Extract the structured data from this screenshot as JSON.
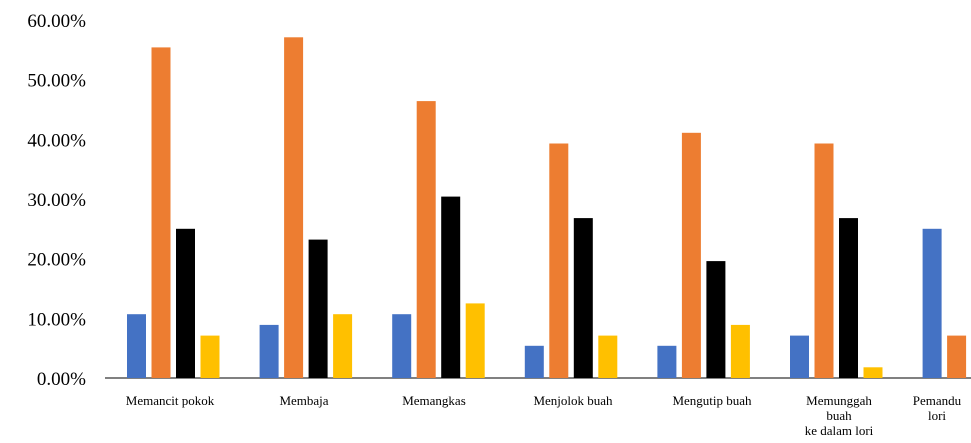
{
  "chart_data": {
    "type": "bar",
    "title": "",
    "xlabel": "",
    "ylabel": "",
    "ylim": [
      0,
      60
    ],
    "y_ticks": [
      "0.00%",
      "10.00%",
      "20.00%",
      "30.00%",
      "40.00%",
      "50.00%",
      "60.00%"
    ],
    "y_tick_values": [
      0,
      10,
      20,
      30,
      40,
      50,
      60
    ],
    "grid": false,
    "legend": "none",
    "categories": [
      [
        "Memancit pokok"
      ],
      [
        "Membaja"
      ],
      [
        "Memangkas"
      ],
      [
        "Menjolok buah"
      ],
      [
        "Mengutip buah"
      ],
      [
        "Memunggah",
        "buah",
        "ke dalam lori"
      ],
      [
        "Pemandu",
        "lori"
      ]
    ],
    "series": [
      {
        "color": "#4472C4",
        "values": [
          10.7,
          8.9,
          10.7,
          5.4,
          5.4,
          7.1,
          25.0
        ]
      },
      {
        "color": "#ED7D31",
        "values": [
          55.4,
          57.1,
          46.4,
          39.3,
          41.1,
          39.3,
          7.1
        ]
      },
      {
        "color": "#000000",
        "values": [
          25.0,
          23.2,
          30.4,
          26.8,
          19.6,
          26.8,
          0
        ]
      },
      {
        "color": "#FFC000",
        "values": [
          7.1,
          10.7,
          12.5,
          7.1,
          8.9,
          1.8,
          0
        ]
      }
    ]
  }
}
